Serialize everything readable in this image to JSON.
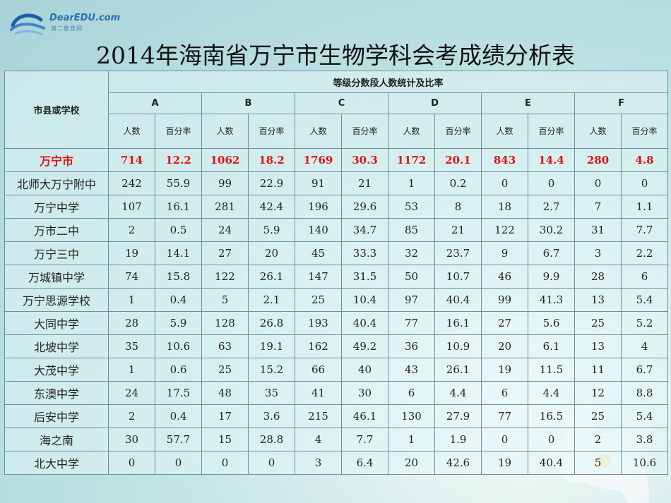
{
  "logo": {
    "text": "DearEDU.com",
    "sub": "第二教育网"
  },
  "title": "2014年海南省万宁市生物学科会考成绩分析表",
  "header": {
    "school_col": "市县或学校",
    "group": "等级分数段人数统计及比率",
    "grades": [
      "A",
      "B",
      "C",
      "D",
      "E",
      "F"
    ],
    "count_label": "人数",
    "pct_label": "百分率"
  },
  "total": {
    "name": "万宁市",
    "values": [
      "714",
      "12.2",
      "1062",
      "18.2",
      "1769",
      "30.3",
      "1172",
      "20.1",
      "843",
      "14.4",
      "280",
      "4.8"
    ]
  },
  "rows": [
    {
      "name": "北师大万宁附中",
      "values": [
        "242",
        "55.9",
        "99",
        "22.9",
        "91",
        "21",
        "1",
        "0.2",
        "0",
        "0",
        "0",
        "0"
      ]
    },
    {
      "name": "万宁中学",
      "values": [
        "107",
        "16.1",
        "281",
        "42.4",
        "196",
        "29.6",
        "53",
        "8",
        "18",
        "2.7",
        "7",
        "1.1"
      ]
    },
    {
      "name": "万市二中",
      "values": [
        "2",
        "0.5",
        "24",
        "5.9",
        "140",
        "34.7",
        "85",
        "21",
        "122",
        "30.2",
        "31",
        "7.7"
      ]
    },
    {
      "name": "万宁三中",
      "values": [
        "19",
        "14.1",
        "27",
        "20",
        "45",
        "33.3",
        "32",
        "23.7",
        "9",
        "6.7",
        "3",
        "2.2"
      ]
    },
    {
      "name": "万城镇中学",
      "values": [
        "74",
        "15.8",
        "122",
        "26.1",
        "147",
        "31.5",
        "50",
        "10.7",
        "46",
        "9.9",
        "28",
        "6"
      ]
    },
    {
      "name": "万宁思源学校",
      "values": [
        "1",
        "0.4",
        "5",
        "2.1",
        "25",
        "10.4",
        "97",
        "40.4",
        "99",
        "41.3",
        "13",
        "5.4"
      ]
    },
    {
      "name": "大同中学",
      "values": [
        "28",
        "5.9",
        "128",
        "26.8",
        "193",
        "40.4",
        "77",
        "16.1",
        "27",
        "5.6",
        "25",
        "5.2"
      ]
    },
    {
      "name": "北坡中学",
      "values": [
        "35",
        "10.6",
        "63",
        "19.1",
        "162",
        "49.2",
        "36",
        "10.9",
        "20",
        "6.1",
        "13",
        "4"
      ]
    },
    {
      "name": "大茂中学",
      "values": [
        "1",
        "0.6",
        "25",
        "15.2",
        "66",
        "40",
        "43",
        "26.1",
        "19",
        "11.5",
        "11",
        "6.7"
      ]
    },
    {
      "name": "东澳中学",
      "values": [
        "24",
        "17.5",
        "48",
        "35",
        "41",
        "30",
        "6",
        "4.4",
        "6",
        "4.4",
        "12",
        "8.8"
      ]
    },
    {
      "name": "后安中学",
      "values": [
        "2",
        "0.4",
        "17",
        "3.6",
        "215",
        "46.1",
        "130",
        "27.9",
        "77",
        "16.5",
        "25",
        "5.4"
      ]
    },
    {
      "name": "海之南",
      "values": [
        "30",
        "57.7",
        "15",
        "28.8",
        "4",
        "7.7",
        "1",
        "1.9",
        "0",
        "0",
        "2",
        "3.8"
      ]
    },
    {
      "name": "北大中学",
      "values": [
        "0",
        "0",
        "0",
        "0",
        "3",
        "6.4",
        "20",
        "42.6",
        "19",
        "40.4",
        "5",
        "10.6"
      ]
    }
  ]
}
